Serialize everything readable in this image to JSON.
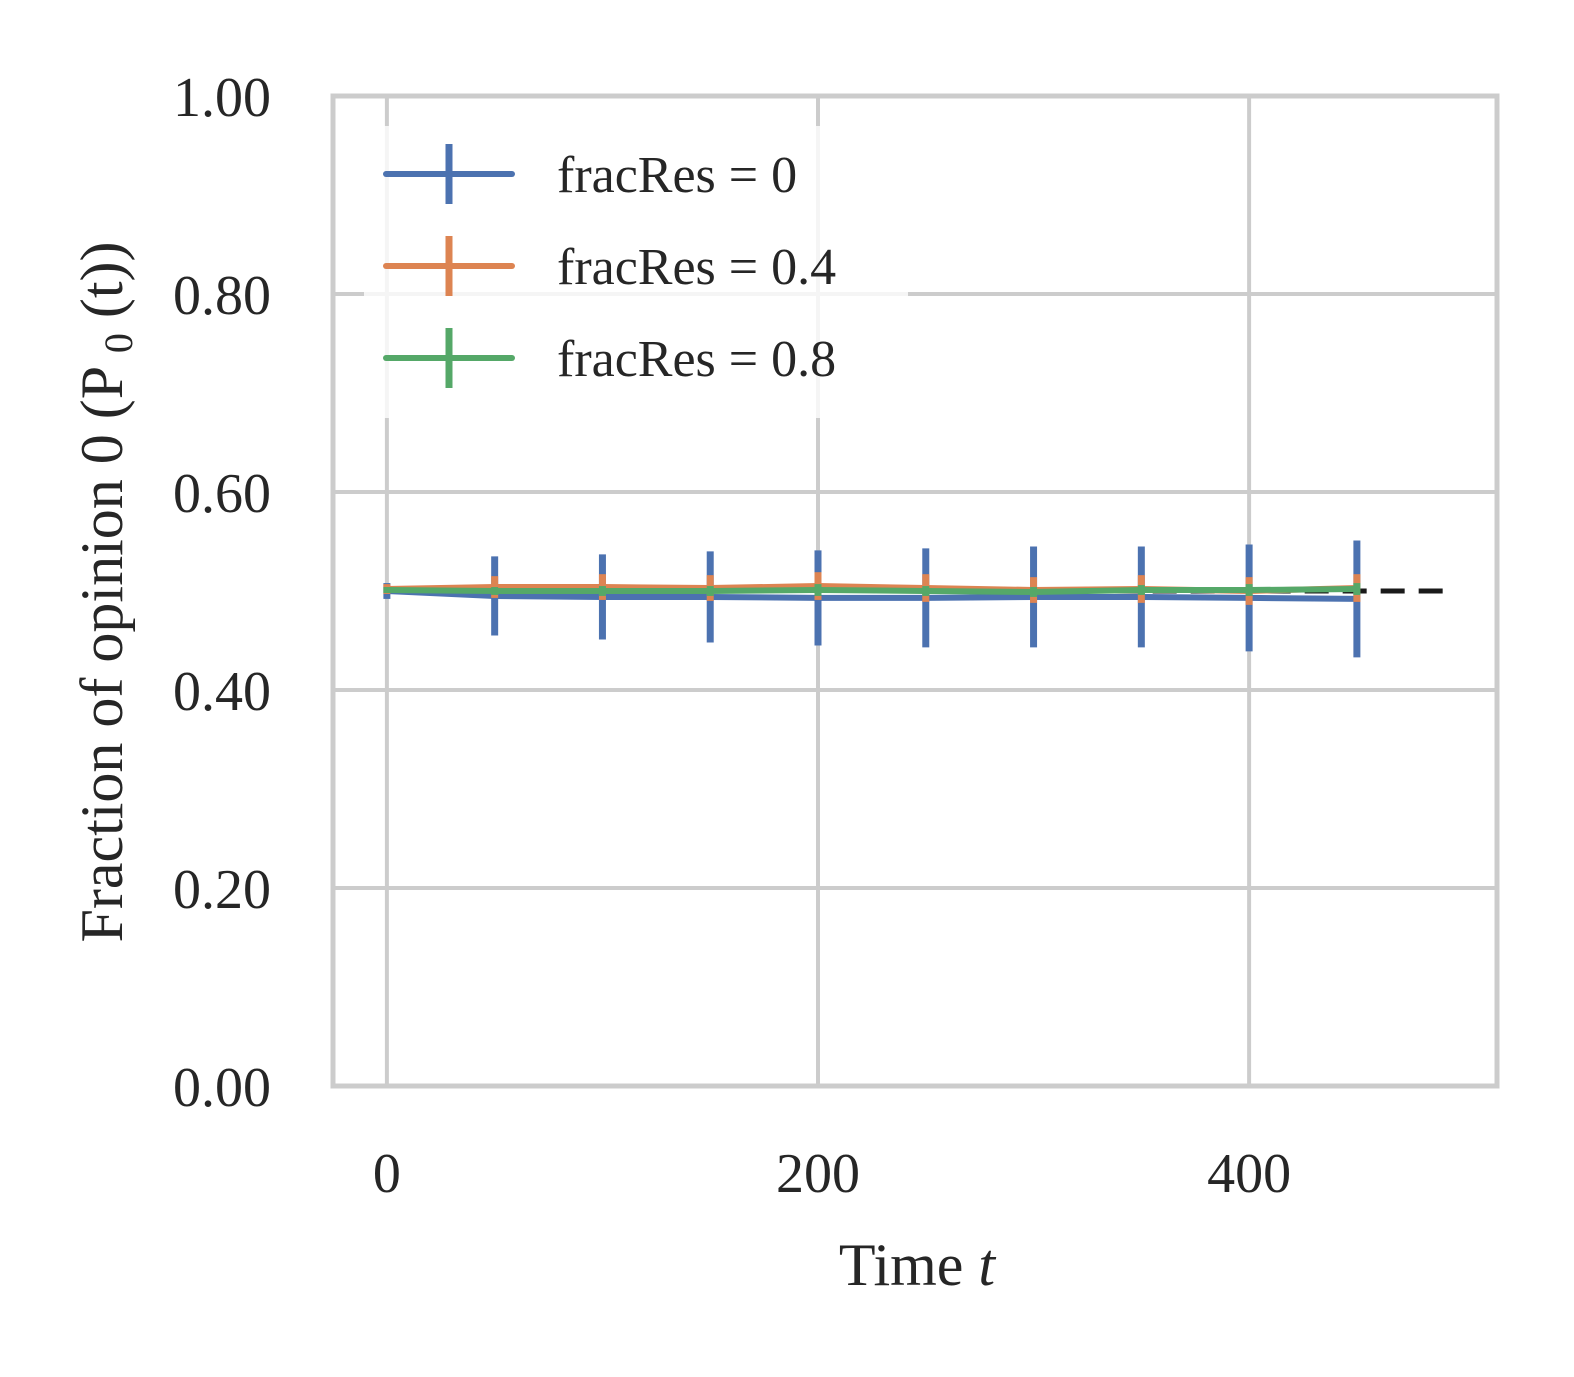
{
  "chart_data": {
    "type": "line",
    "title": "",
    "xlabel": "Time",
    "xlabel_var": "t",
    "ylabel": "Fraction of opinion 0 (P",
    "ylabel_sub": "0",
    "ylabel_tail": "(t))",
    "xlim": [
      -25,
      515
    ],
    "ylim": [
      0.0,
      1.0
    ],
    "x_ticks": [
      0,
      200,
      400
    ],
    "x_tick_labels": [
      "0",
      "200",
      "400"
    ],
    "y_ticks": [
      0.0,
      0.2,
      0.4,
      0.6,
      0.8,
      1.0
    ],
    "y_tick_labels": [
      "0.00",
      "0.20",
      "0.40",
      "0.60",
      "0.80",
      "1.00"
    ],
    "grid": true,
    "legend_position": "top-left",
    "x": [
      0,
      50,
      100,
      150,
      200,
      250,
      300,
      350,
      400,
      450
    ],
    "series": [
      {
        "name": "fracRes = 0",
        "color": "#4c72b0",
        "values": [
          0.5,
          0.495,
          0.494,
          0.494,
          0.493,
          0.493,
          0.494,
          0.494,
          0.493,
          0.492
        ],
        "errors": [
          0.008,
          0.04,
          0.043,
          0.046,
          0.048,
          0.05,
          0.051,
          0.051,
          0.054,
          0.059
        ]
      },
      {
        "name": "fracRes = 0.4",
        "color": "#dd8452",
        "values": [
          0.502,
          0.504,
          0.504,
          0.503,
          0.505,
          0.503,
          0.501,
          0.502,
          0.5,
          0.503
        ],
        "errors": [
          0.005,
          0.011,
          0.013,
          0.013,
          0.014,
          0.014,
          0.013,
          0.014,
          0.014,
          0.014
        ]
      },
      {
        "name": "fracRes = 0.8",
        "color": "#55a868",
        "values": [
          0.501,
          0.5,
          0.5,
          0.5,
          0.501,
          0.5,
          0.499,
          0.501,
          0.501,
          0.502
        ],
        "errors": [
          0.003,
          0.004,
          0.005,
          0.005,
          0.006,
          0.005,
          0.005,
          0.005,
          0.006,
          0.006
        ]
      }
    ],
    "reference_line": {
      "style": "dashed",
      "color": "#1a1a1a",
      "y": 0.5,
      "x_range": [
        320,
        490
      ]
    }
  }
}
